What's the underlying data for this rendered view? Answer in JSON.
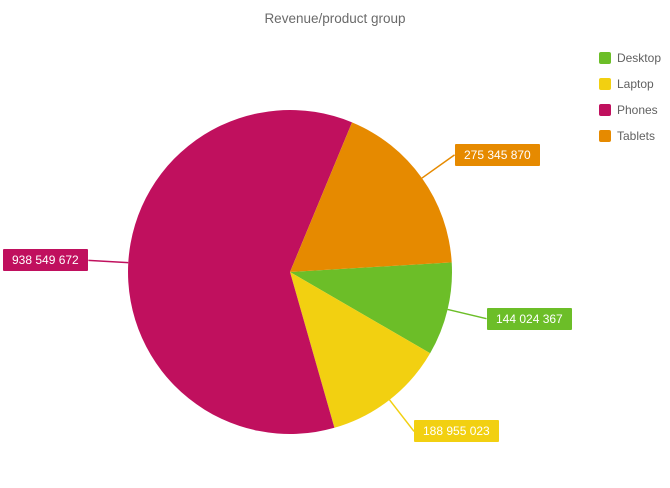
{
  "chart_data": {
    "type": "pie",
    "title": "Revenue/product group",
    "legend_position": "top-right",
    "label_text_color": "#ffffff",
    "title_color": "#6a6a6a",
    "slices": [
      {
        "label": "Desktop",
        "value": 144024367,
        "formatted": "144 024 367",
        "color": "#6CBE28"
      },
      {
        "label": "Laptop",
        "value": 188955023,
        "formatted": "188 955 023",
        "color": "#F2D011"
      },
      {
        "label": "Phones",
        "value": 938549672,
        "formatted": "938 549 672",
        "color": "#C0105E"
      },
      {
        "label": "Tablets",
        "value": 275345870,
        "formatted": "275 345 870",
        "color": "#E68A00"
      }
    ]
  }
}
